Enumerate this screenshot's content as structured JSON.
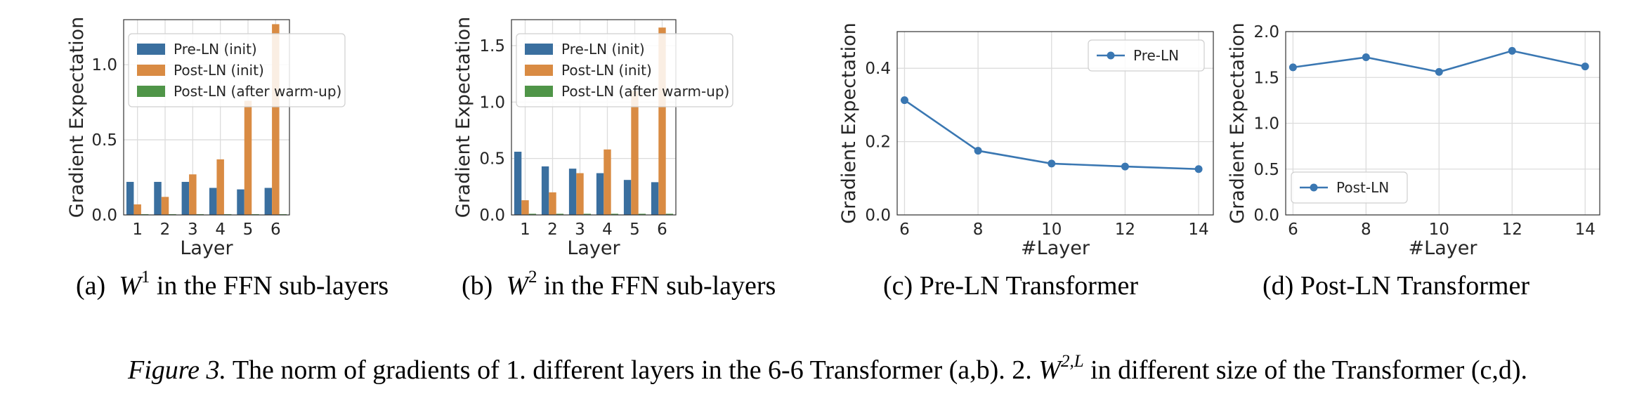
{
  "chart_data": [
    {
      "id": "a",
      "type": "bar",
      "categories": [
        "1",
        "2",
        "3",
        "4",
        "5",
        "6"
      ],
      "series": [
        {
          "name": "Pre-LN (init)",
          "color": "#3a6f9f",
          "values": [
            0.22,
            0.22,
            0.22,
            0.18,
            0.17,
            0.18
          ]
        },
        {
          "name": "Post-LN (init)",
          "color": "#d98b43",
          "values": [
            0.07,
            0.12,
            0.27,
            0.37,
            0.76,
            1.27
          ]
        },
        {
          "name": "Post-LN (after warm-up)",
          "color": "#4f9548",
          "values": [
            0.005,
            0.005,
            0.005,
            0.005,
            0.005,
            0.005
          ]
        }
      ],
      "xlabel": "Layer",
      "ylabel": "Gradient Expectation",
      "ylim": [
        0,
        1.3
      ],
      "yticks": [
        0.0,
        0.5,
        1.0
      ],
      "ytick_labels": [
        "0.0",
        "0.5",
        "1.0"
      ],
      "grid": true,
      "legend": "top-left"
    },
    {
      "id": "b",
      "type": "bar",
      "categories": [
        "1",
        "2",
        "3",
        "4",
        "5",
        "6"
      ],
      "series": [
        {
          "name": "Pre-LN (init)",
          "color": "#3a6f9f",
          "values": [
            0.56,
            0.43,
            0.41,
            0.37,
            0.31,
            0.29
          ]
        },
        {
          "name": "Post-LN (init)",
          "color": "#d98b43",
          "values": [
            0.13,
            0.2,
            0.37,
            0.58,
            1.1,
            1.66
          ]
        },
        {
          "name": "Post-LN (after warm-up)",
          "color": "#4f9548",
          "values": [
            0.01,
            0.01,
            0.01,
            0.01,
            0.01,
            0.01
          ]
        }
      ],
      "xlabel": "Layer",
      "ylabel": "Gradient Expectation",
      "ylim": [
        0,
        1.73
      ],
      "yticks": [
        0.0,
        0.5,
        1.0,
        1.5
      ],
      "ytick_labels": [
        "0.0",
        "0.5",
        "1.0",
        "1.5"
      ],
      "grid": true,
      "legend": "top-left"
    },
    {
      "id": "c",
      "type": "line",
      "x": [
        6,
        8,
        10,
        12,
        14
      ],
      "series": [
        {
          "name": "Pre-LN",
          "color": "#3a77b2",
          "values": [
            0.313,
            0.175,
            0.14,
            0.132,
            0.125
          ]
        }
      ],
      "xlabel": "#Layer",
      "ylabel": "Gradient Expectation",
      "xlim": [
        5.8,
        14.4
      ],
      "xticks": [
        6,
        8,
        10,
        12,
        14
      ],
      "xtick_labels": [
        "6",
        "8",
        "10",
        "12",
        "14"
      ],
      "ylim": [
        0,
        0.5
      ],
      "yticks": [
        0.0,
        0.2,
        0.4
      ],
      "ytick_labels": [
        "0.0",
        "0.2",
        "0.4"
      ],
      "grid": true,
      "legend": "top-right"
    },
    {
      "id": "d",
      "type": "line",
      "x": [
        6,
        8,
        10,
        12,
        14
      ],
      "series": [
        {
          "name": "Post-LN",
          "color": "#3a77b2",
          "values": [
            1.61,
            1.72,
            1.56,
            1.79,
            1.62
          ]
        }
      ],
      "xlabel": "#Layer",
      "ylabel": "Gradient Expectation",
      "xlim": [
        5.8,
        14.4
      ],
      "xticks": [
        6,
        8,
        10,
        12,
        14
      ],
      "xtick_labels": [
        "6",
        "8",
        "10",
        "12",
        "14"
      ],
      "ylim": [
        0,
        2.0
      ],
      "yticks": [
        0.0,
        0.5,
        1.0,
        1.5,
        2.0
      ],
      "ytick_labels": [
        "0.0",
        "0.5",
        "1.0",
        "1.5",
        "2.0"
      ],
      "grid": true,
      "legend": "bottom-left"
    }
  ],
  "subcaptions": {
    "a": {
      "label": "(a)",
      "math": "W",
      "sup": "1",
      "text": "in the FFN sub-layers"
    },
    "b": {
      "label": "(b)",
      "math": "W",
      "sup": "2",
      "text": "in the FFN sub-layers"
    },
    "c": {
      "label": "(c)",
      "text": "Pre-LN Transformer"
    },
    "d": {
      "label": "(d)",
      "text": "Post-LN Transformer"
    }
  },
  "caption": {
    "label": "Figure 3.",
    "text1": "The norm of gradients of 1. different layers in the 6-6 Transformer (a,b). 2.",
    "math": "W",
    "sup": "2,L",
    "text2": "in different size of the Transformer (c,d)."
  }
}
